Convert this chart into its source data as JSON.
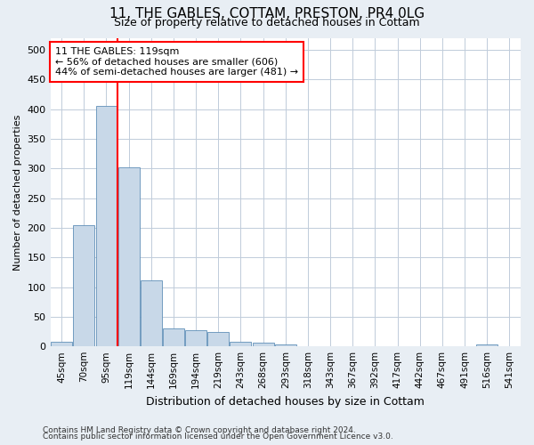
{
  "title_line1": "11, THE GABLES, COTTAM, PRESTON, PR4 0LG",
  "title_line2": "Size of property relative to detached houses in Cottam",
  "xlabel": "Distribution of detached houses by size in Cottam",
  "ylabel": "Number of detached properties",
  "bar_color": "#c8d8e8",
  "bar_edge_color": "#6090b8",
  "vline_color": "red",
  "vline_index": 3,
  "annotation_text": "11 THE GABLES: 119sqm\n← 56% of detached houses are smaller (606)\n44% of semi-detached houses are larger (481) →",
  "annotation_box_color": "white",
  "annotation_box_edge": "red",
  "bins": [
    "45sqm",
    "70sqm",
    "95sqm",
    "119sqm",
    "144sqm",
    "169sqm",
    "194sqm",
    "219sqm",
    "243sqm",
    "268sqm",
    "293sqm",
    "318sqm",
    "343sqm",
    "367sqm",
    "392sqm",
    "417sqm",
    "442sqm",
    "467sqm",
    "491sqm",
    "516sqm",
    "541sqm"
  ],
  "values": [
    8,
    205,
    405,
    302,
    112,
    30,
    27,
    25,
    8,
    6,
    3,
    0,
    0,
    0,
    0,
    0,
    0,
    0,
    0,
    3,
    0
  ],
  "ylim": [
    0,
    520
  ],
  "yticks": [
    0,
    50,
    100,
    150,
    200,
    250,
    300,
    350,
    400,
    450,
    500
  ],
  "footer_line1": "Contains HM Land Registry data © Crown copyright and database right 2024.",
  "footer_line2": "Contains public sector information licensed under the Open Government Licence v3.0.",
  "bg_color": "#e8eef4",
  "plot_bg_color": "#ffffff",
  "grid_color": "#c0ccda",
  "title_fontsize": 11,
  "subtitle_fontsize": 9,
  "ylabel_fontsize": 8,
  "xlabel_fontsize": 9,
  "tick_fontsize": 8,
  "xtick_fontsize": 7.5
}
